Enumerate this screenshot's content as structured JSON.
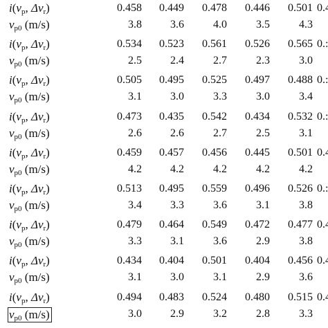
{
  "labels": {
    "i_row": "i(vp, Δvr)",
    "v_row": "vp0 (m/s)",
    "i_parts": {
      "i": "i",
      "v": "v",
      "p": "p",
      "delta": "Δ",
      "r": "r"
    },
    "v_parts": {
      "v": "v",
      "p0": "p0",
      "unit": "(m/s)"
    }
  },
  "groups": [
    {
      "i": [
        "0.458",
        "0.449",
        "0.478",
        "0.446",
        "0.501"
      ],
      "i_edge": "0.4",
      "v": [
        "3.8",
        "3.6",
        "4.0",
        "3.5",
        "4.3"
      ],
      "v_edge": ""
    },
    {
      "i": [
        "0.534",
        "0.523",
        "0.561",
        "0.526",
        "0.565"
      ],
      "i_edge": "0.:",
      "v": [
        "2.5",
        "2.4",
        "2.7",
        "2.3",
        "3.0"
      ],
      "v_edge": ""
    },
    {
      "i": [
        "0.505",
        "0.495",
        "0.525",
        "0.497",
        "0.488"
      ],
      "i_edge": "0.:",
      "v": [
        "3.1",
        "3.0",
        "3.3",
        "3.0",
        "3.4"
      ],
      "v_edge": ""
    },
    {
      "i": [
        "0.473",
        "0.435",
        "0.542",
        "0.434",
        "0.532"
      ],
      "i_edge": "0.:",
      "v": [
        "2.6",
        "2.6",
        "2.7",
        "2.5",
        "3.1"
      ],
      "v_edge": ""
    },
    {
      "i": [
        "0.459",
        "0.457",
        "0.456",
        "0.445",
        "0.501"
      ],
      "i_edge": "0.4",
      "v": [
        "4.2",
        "4.2",
        "4.2",
        "4.2",
        "4.2"
      ],
      "v_edge": ""
    },
    {
      "i": [
        "0.513",
        "0.495",
        "0.559",
        "0.496",
        "0.526"
      ],
      "i_edge": "0.:",
      "v": [
        "3.4",
        "3.3",
        "3.6",
        "3.1",
        "3.8"
      ],
      "v_edge": ""
    },
    {
      "i": [
        "0.479",
        "0.464",
        "0.549",
        "0.472",
        "0.477"
      ],
      "i_edge": "0.4",
      "v": [
        "3.3",
        "3.1",
        "3.6",
        "2.9",
        "3.8"
      ],
      "v_edge": ""
    },
    {
      "i": [
        "0.434",
        "0.404",
        "0.501",
        "0.404",
        "0.456"
      ],
      "i_edge": "0.4",
      "v": [
        "3.1",
        "3.0",
        "3.1",
        "2.9",
        "3.6"
      ],
      "v_edge": ""
    },
    {
      "i": [
        "0.494",
        "0.483",
        "0.524",
        "0.480",
        "0.515"
      ],
      "i_edge": "0.4",
      "v": [
        "3.0",
        "2.9",
        "3.2",
        "2.8",
        "3.3"
      ],
      "v_edge": ""
    }
  ]
}
